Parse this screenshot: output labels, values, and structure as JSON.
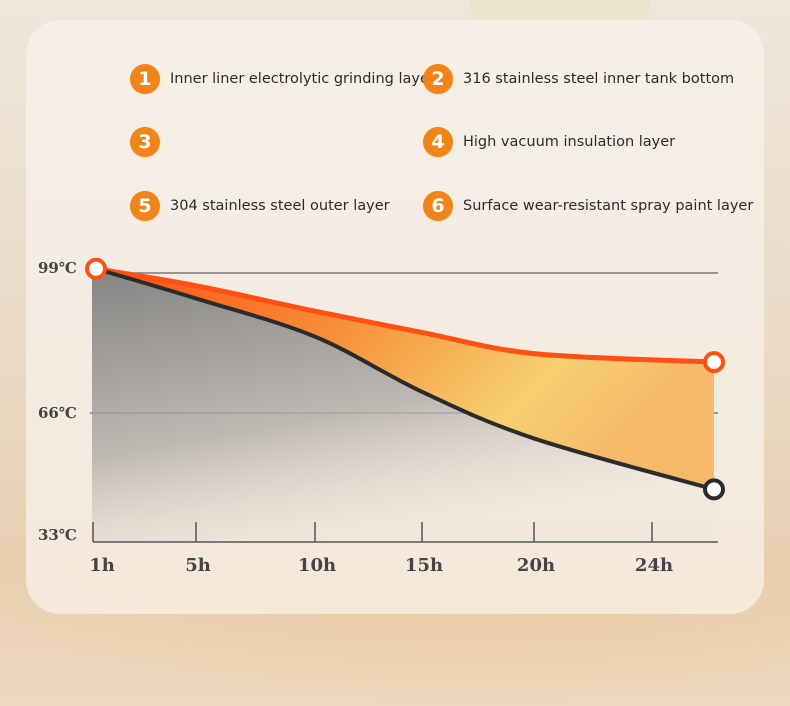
{
  "legend": [
    {
      "num": "1",
      "label": "Inner liner electrolytic grinding layer"
    },
    {
      "num": "2",
      "label": "316 stainless steel inner tank bottom"
    },
    {
      "num": "3",
      "label": ""
    },
    {
      "num": "4",
      "label": "High vacuum insulation layer"
    },
    {
      "num": "5",
      "label": "304 stainless steel outer layer"
    },
    {
      "num": "6",
      "label": "Surface wear-resistant spray paint layer"
    }
  ],
  "colors": {
    "badge": "#f08419",
    "hot_line": "#ff4f12",
    "cold_line": "#2b2b2b",
    "gridline": "#7a7a7a"
  },
  "chart_data": {
    "type": "line",
    "x": [
      "1h",
      "5h",
      "10h",
      "15h",
      "20h",
      "24h"
    ],
    "yticks": [
      "99℃",
      "66℃",
      "33℃"
    ],
    "grid": true,
    "series": [
      {
        "key": "upper",
        "color": "#ff4f12",
        "values": [
          100,
          96,
          90,
          85,
          80,
          78
        ]
      },
      {
        "key": "lower",
        "color": "#2b2b2b",
        "values": [
          100,
          93,
          84,
          71,
          60,
          48
        ]
      }
    ]
  }
}
